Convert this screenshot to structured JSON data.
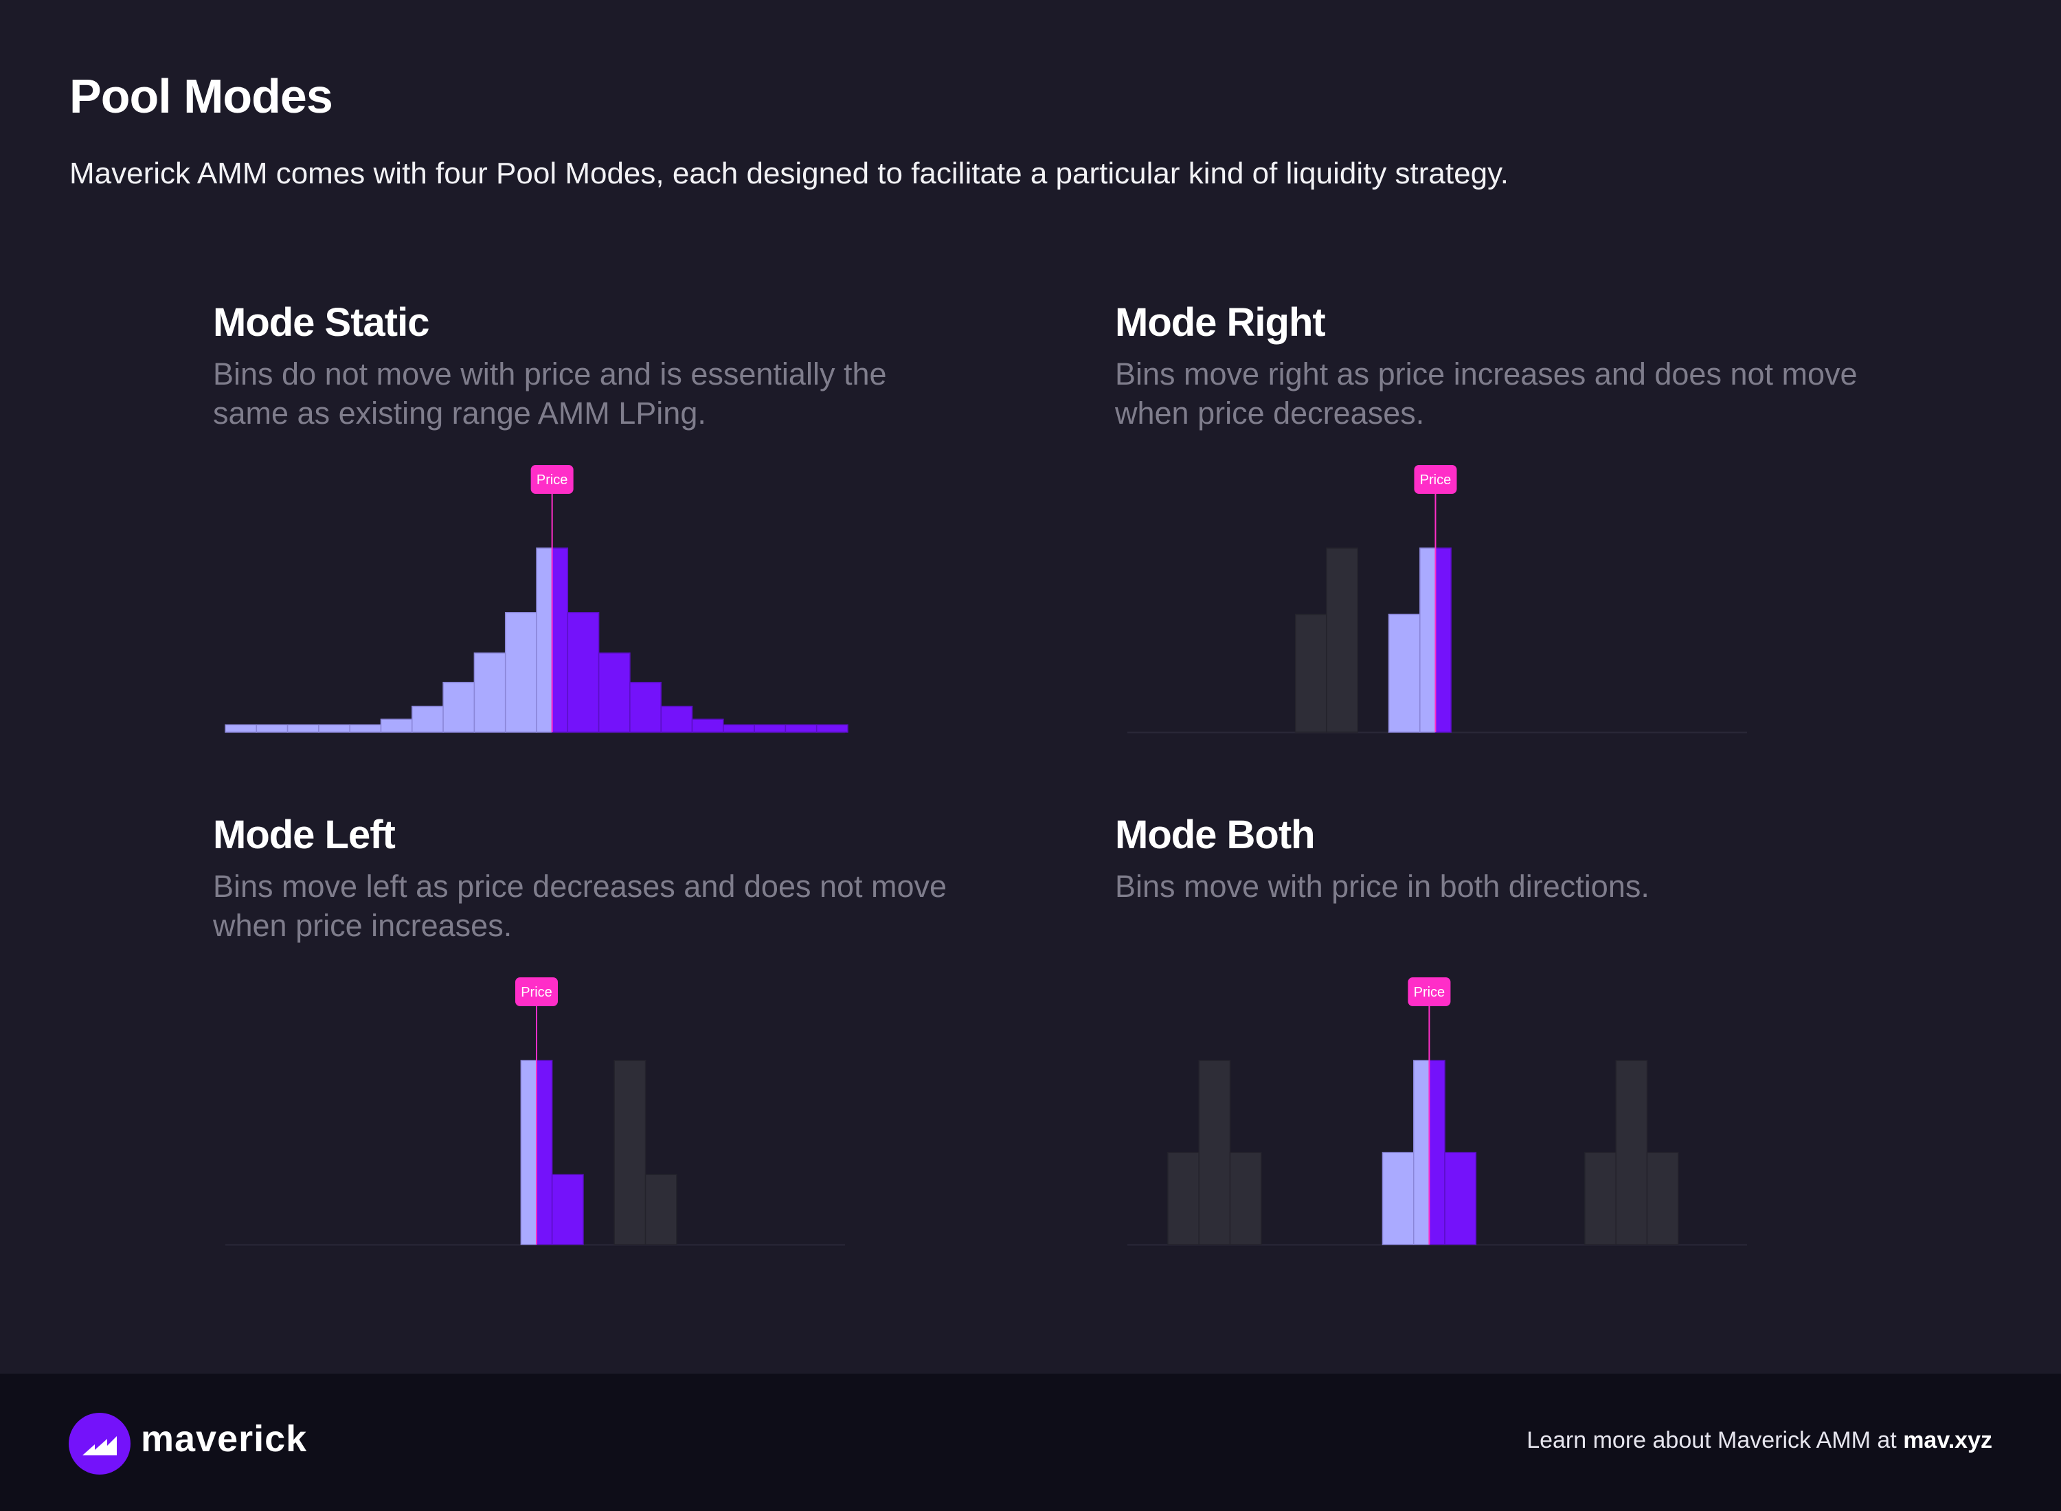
{
  "header": {
    "title": "Pool Modes",
    "intro": "Maverick AMM comes with four Pool Modes, each designed to facilitate a particular kind of liquidity strategy."
  },
  "colors": {
    "background": "#1c1a28",
    "footer_background": "#0e0d18",
    "bin_left_of_price": "#aaaaff",
    "bin_right_of_price": "#7412fa",
    "bin_ghost": "#2e2d37",
    "price_marker": "#ff2ec8",
    "baseline": "#2a2838"
  },
  "price_marker_label": "Price",
  "panels": [
    {
      "id": "static",
      "title": "Mode Static",
      "description": "Bins do not move with price and is essentially the same as existing range AMM LPing.",
      "description_lines": [
        "Bins do not move with price and is essentially the",
        "same as existing range AMM LPing."
      ],
      "bins": [
        {
          "slot": 0,
          "height": 0.04,
          "kind": "left"
        },
        {
          "slot": 1,
          "height": 0.04,
          "kind": "left"
        },
        {
          "slot": 2,
          "height": 0.04,
          "kind": "left"
        },
        {
          "slot": 3,
          "height": 0.04,
          "kind": "left"
        },
        {
          "slot": 4,
          "height": 0.04,
          "kind": "left"
        },
        {
          "slot": 5,
          "height": 0.07,
          "kind": "left"
        },
        {
          "slot": 6,
          "height": 0.14,
          "kind": "left"
        },
        {
          "slot": 7,
          "height": 0.27,
          "kind": "left"
        },
        {
          "slot": 8,
          "height": 0.43,
          "kind": "left"
        },
        {
          "slot": 9,
          "height": 0.65,
          "kind": "left"
        },
        {
          "slot": 10,
          "height": 1.0,
          "kind": "split"
        },
        {
          "slot": 11,
          "height": 0.65,
          "kind": "right"
        },
        {
          "slot": 12,
          "height": 0.43,
          "kind": "right"
        },
        {
          "slot": 13,
          "height": 0.27,
          "kind": "right"
        },
        {
          "slot": 14,
          "height": 0.14,
          "kind": "right"
        },
        {
          "slot": 15,
          "height": 0.07,
          "kind": "right"
        },
        {
          "slot": 16,
          "height": 0.04,
          "kind": "right"
        },
        {
          "slot": 17,
          "height": 0.04,
          "kind": "right"
        },
        {
          "slot": 18,
          "height": 0.04,
          "kind": "right"
        },
        {
          "slot": 19,
          "height": 0.04,
          "kind": "right"
        }
      ]
    },
    {
      "id": "right",
      "title": "Mode Right",
      "description": "Bins move right as price increases and does not move when price decreases.",
      "description_lines": [
        "Bins move right as price increases and does not",
        "move when price decreases."
      ],
      "bins": [
        {
          "slot": 5.4,
          "height": 0.64,
          "kind": "ghost"
        },
        {
          "slot": 6.4,
          "height": 1.0,
          "kind": "ghost"
        },
        {
          "slot": 8.4,
          "height": 0.64,
          "kind": "left"
        },
        {
          "slot": 9.4,
          "height": 1.0,
          "kind": "split_mostly_left"
        }
      ]
    },
    {
      "id": "left",
      "title": "Mode Left",
      "description": "Bins move left as price decreases and does not move when price increases.",
      "description_lines": [
        "Bins move left as price decreases and does not",
        "move when price increases."
      ],
      "bins": [
        {
          "slot": 9.5,
          "height": 1.0,
          "kind": "split"
        },
        {
          "slot": 10.5,
          "height": 0.38,
          "kind": "right"
        },
        {
          "slot": 12.5,
          "height": 1.0,
          "kind": "ghost"
        },
        {
          "slot": 13.5,
          "height": 0.38,
          "kind": "ghost"
        }
      ]
    },
    {
      "id": "both",
      "title": "Mode Both",
      "description": "Bins move with price in both directions.",
      "description_lines": [
        "Bins move with price in both directions."
      ],
      "bins": [
        {
          "slot": 1.3,
          "height": 0.5,
          "kind": "ghost"
        },
        {
          "slot": 2.3,
          "height": 1.0,
          "kind": "ghost"
        },
        {
          "slot": 3.3,
          "height": 0.5,
          "kind": "ghost"
        },
        {
          "slot": 8.2,
          "height": 0.5,
          "kind": "left"
        },
        {
          "slot": 9.2,
          "height": 1.0,
          "kind": "split"
        },
        {
          "slot": 10.2,
          "height": 0.5,
          "kind": "right"
        },
        {
          "slot": 14.7,
          "height": 0.5,
          "kind": "ghost"
        },
        {
          "slot": 15.7,
          "height": 1.0,
          "kind": "ghost"
        },
        {
          "slot": 16.7,
          "height": 0.5,
          "kind": "ghost"
        }
      ]
    }
  ],
  "footer": {
    "brand": "maverick",
    "cta_text": "Learn more about Maverick AMM at ",
    "cta_link": "mav.xyz"
  }
}
